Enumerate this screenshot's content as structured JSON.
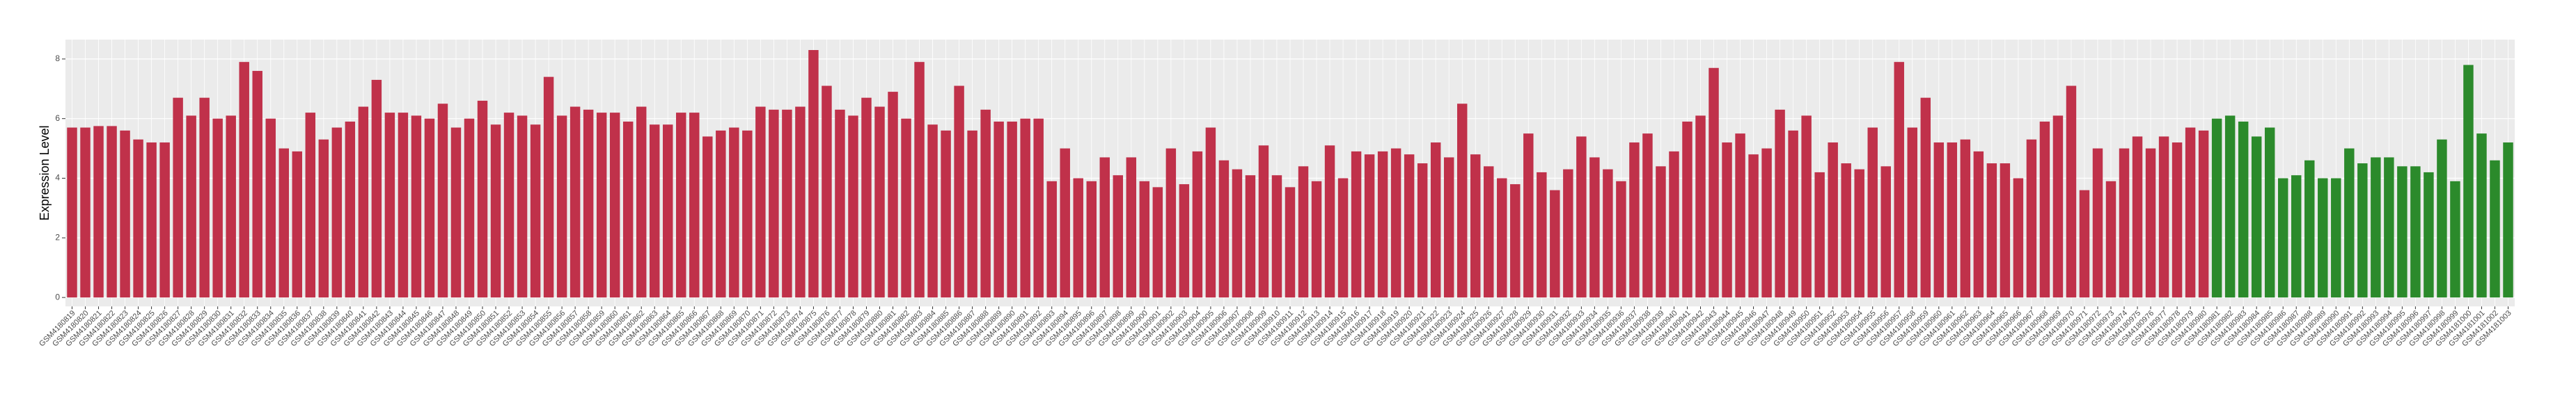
{
  "chart_data": {
    "type": "bar",
    "y_label": "Expression Level",
    "categories": [
      "GSM4180819",
      "GSM4180820",
      "GSM4180821",
      "GSM4180822",
      "GSM4180823",
      "GSM4180824",
      "GSM4180825",
      "GSM4180826",
      "GSM4180827",
      "GSM4180828",
      "GSM4180829",
      "GSM4180830",
      "GSM4180831",
      "GSM4180832",
      "GSM4180833",
      "GSM4180834",
      "GSM4180835",
      "GSM4180836",
      "GSM4180837",
      "GSM4180838",
      "GSM4180839",
      "GSM4180840",
      "GSM4180841",
      "GSM4180842",
      "GSM4180843",
      "GSM4180844",
      "GSM4180845",
      "GSM4180846",
      "GSM4180847",
      "GSM4180848",
      "GSM4180849",
      "GSM4180850",
      "GSM4180851",
      "GSM4180852",
      "GSM4180853",
      "GSM4180854",
      "GSM4180855",
      "GSM4180856",
      "GSM4180857",
      "GSM4180858",
      "GSM4180859",
      "GSM4180860",
      "GSM4180861",
      "GSM4180862",
      "GSM4180863",
      "GSM4180864",
      "GSM4180865",
      "GSM4180866",
      "GSM4180867",
      "GSM4180868",
      "GSM4180869",
      "GSM4180870",
      "GSM4180871",
      "GSM4180872",
      "GSM4180873",
      "GSM4180874",
      "GSM4180875",
      "GSM4180876",
      "GSM4180877",
      "GSM4180878",
      "GSM4180879",
      "GSM4180880",
      "GSM4180881",
      "GSM4180882",
      "GSM4180883",
      "GSM4180884",
      "GSM4180885",
      "GSM4180886",
      "GSM4180887",
      "GSM4180888",
      "GSM4180889",
      "GSM4180890",
      "GSM4180891",
      "GSM4180892",
      "GSM4180893",
      "GSM4180894",
      "GSM4180895",
      "GSM4180896",
      "GSM4180897",
      "GSM4180898",
      "GSM4180899",
      "GSM4180900",
      "GSM4180901",
      "GSM4180902",
      "GSM4180903",
      "GSM4180904",
      "GSM4180905",
      "GSM4180906",
      "GSM4180907",
      "GSM4180908",
      "GSM4180909",
      "GSM4180910",
      "GSM4180911",
      "GSM4180912",
      "GSM4180913",
      "GSM4180914",
      "GSM4180915",
      "GSM4180916",
      "GSM4180917",
      "GSM4180918",
      "GSM4180919",
      "GSM4180920",
      "GSM4180921",
      "GSM4180922",
      "GSM4180923",
      "GSM4180924",
      "GSM4180925",
      "GSM4180926",
      "GSM4180927",
      "GSM4180928",
      "GSM4180929",
      "GSM4180930",
      "GSM4180931",
      "GSM4180932",
      "GSM4180933",
      "GSM4180934",
      "GSM4180935",
      "GSM4180936",
      "GSM4180937",
      "GSM4180938",
      "GSM4180939",
      "GSM4180940",
      "GSM4180941",
      "GSM4180942",
      "GSM4180943",
      "GSM4180944",
      "GSM4180945",
      "GSM4180946",
      "GSM4180947",
      "GSM4180948",
      "GSM4180949",
      "GSM4180950",
      "GSM4180951",
      "GSM4180952",
      "GSM4180953",
      "GSM4180954",
      "GSM4180955",
      "GSM4180956",
      "GSM4180957",
      "GSM4180958",
      "GSM4180959",
      "GSM4180960",
      "GSM4180961",
      "GSM4180962",
      "GSM4180963",
      "GSM4180964",
      "GSM4180965",
      "GSM4180966",
      "GSM4180967",
      "GSM4180968",
      "GSM4180969",
      "GSM4180970",
      "GSM4180971",
      "GSM4180972",
      "GSM4180973",
      "GSM4180974",
      "GSM4180975",
      "GSM4180976",
      "GSM4180977",
      "GSM4180978",
      "GSM4180979",
      "GSM4180980",
      "GSM4180981",
      "GSM4180982",
      "GSM4180983",
      "GSM4180984",
      "GSM4180985",
      "GSM4180986",
      "GSM4180987",
      "GSM4180988",
      "GSM4180989",
      "GSM4180990",
      "GSM4180991",
      "GSM4180992",
      "GSM4180993",
      "GSM4180994",
      "GSM4180995",
      "GSM4180996",
      "GSM4180997",
      "GSM4180998",
      "GSM4180999",
      "GSM4181000",
      "GSM4181001",
      "GSM4181002",
      "GSM4181003"
    ],
    "values": [
      5.7,
      5.7,
      5.75,
      5.75,
      5.6,
      5.3,
      5.2,
      5.2,
      6.7,
      6.1,
      6.7,
      6.0,
      6.1,
      7.9,
      7.6,
      6.0,
      5.0,
      4.9,
      6.2,
      5.3,
      5.7,
      5.9,
      6.4,
      7.3,
      6.2,
      6.2,
      6.1,
      6.0,
      6.5,
      5.7,
      6.0,
      6.6,
      5.8,
      6.2,
      6.1,
      5.8,
      7.4,
      6.1,
      6.4,
      6.3,
      6.2,
      6.2,
      5.9,
      6.4,
      5.8,
      5.8,
      6.2,
      6.2,
      5.4,
      5.6,
      5.7,
      5.6,
      6.4,
      6.3,
      6.3,
      6.4,
      8.3,
      7.1,
      6.3,
      6.1,
      6.7,
      6.4,
      6.9,
      6.0,
      7.9,
      5.8,
      5.6,
      7.1,
      5.6,
      6.3,
      5.9,
      5.9,
      6.0,
      6.0,
      3.9,
      5.0,
      4.0,
      3.9,
      4.7,
      4.1,
      4.7,
      3.9,
      3.7,
      5.0,
      3.8,
      4.9,
      5.7,
      4.6,
      4.3,
      4.1,
      5.1,
      4.1,
      3.7,
      4.4,
      3.9,
      5.1,
      4.0,
      4.9,
      4.8,
      4.9,
      5.0,
      4.8,
      4.5,
      5.2,
      4.7,
      6.5,
      4.8,
      4.4,
      4.0,
      3.8,
      5.5,
      4.2,
      3.6,
      4.3,
      5.4,
      4.7,
      4.3,
      3.9,
      5.2,
      5.5,
      4.4,
      4.9,
      5.9,
      6.1,
      7.7,
      5.2,
      5.5,
      4.8,
      5.0,
      6.3,
      5.6,
      6.1,
      4.2,
      5.2,
      4.5,
      4.3,
      5.7,
      4.4,
      7.9,
      5.7,
      6.7,
      5.2,
      5.2,
      5.3,
      4.9,
      4.5,
      4.5,
      4.0,
      5.3,
      5.9,
      6.1,
      7.1,
      3.6,
      5.0,
      3.9,
      5.0,
      5.4,
      5.0,
      5.4,
      5.2,
      5.7,
      5.6,
      6.0,
      6.1,
      5.9,
      5.4,
      5.7,
      4.0,
      4.1,
      4.6,
      4.0,
      4.0,
      5.0,
      4.5,
      4.7,
      4.7,
      4.4,
      4.4,
      4.2,
      5.3,
      3.9,
      7.8,
      5.5,
      4.6,
      5.2
    ],
    "colors": [
      "#c0314a",
      "#c0314a",
      "#c0314a",
      "#c0314a",
      "#c0314a",
      "#c0314a",
      "#c0314a",
      "#c0314a",
      "#c0314a",
      "#c0314a",
      "#c0314a",
      "#c0314a",
      "#c0314a",
      "#c0314a",
      "#c0314a",
      "#c0314a",
      "#c0314a",
      "#c0314a",
      "#c0314a",
      "#c0314a",
      "#c0314a",
      "#c0314a",
      "#c0314a",
      "#c0314a",
      "#c0314a",
      "#c0314a",
      "#c0314a",
      "#c0314a",
      "#c0314a",
      "#c0314a",
      "#c0314a",
      "#c0314a",
      "#c0314a",
      "#c0314a",
      "#c0314a",
      "#c0314a",
      "#c0314a",
      "#c0314a",
      "#c0314a",
      "#c0314a",
      "#c0314a",
      "#c0314a",
      "#c0314a",
      "#c0314a",
      "#c0314a",
      "#c0314a",
      "#c0314a",
      "#c0314a",
      "#c0314a",
      "#c0314a",
      "#c0314a",
      "#c0314a",
      "#c0314a",
      "#c0314a",
      "#c0314a",
      "#c0314a",
      "#c0314a",
      "#c0314a",
      "#c0314a",
      "#c0314a",
      "#c0314a",
      "#c0314a",
      "#c0314a",
      "#c0314a",
      "#c0314a",
      "#c0314a",
      "#c0314a",
      "#c0314a",
      "#c0314a",
      "#c0314a",
      "#c0314a",
      "#c0314a",
      "#c0314a",
      "#c0314a",
      "#c0314a",
      "#c0314a",
      "#c0314a",
      "#c0314a",
      "#c0314a",
      "#c0314a",
      "#c0314a",
      "#c0314a",
      "#c0314a",
      "#c0314a",
      "#c0314a",
      "#c0314a",
      "#c0314a",
      "#c0314a",
      "#c0314a",
      "#c0314a",
      "#c0314a",
      "#c0314a",
      "#c0314a",
      "#c0314a",
      "#c0314a",
      "#c0314a",
      "#c0314a",
      "#c0314a",
      "#c0314a",
      "#c0314a",
      "#c0314a",
      "#c0314a",
      "#c0314a",
      "#c0314a",
      "#c0314a",
      "#c0314a",
      "#c0314a",
      "#c0314a",
      "#c0314a",
      "#c0314a",
      "#c0314a",
      "#c0314a",
      "#c0314a",
      "#c0314a",
      "#c0314a",
      "#c0314a",
      "#c0314a",
      "#c0314a",
      "#c0314a",
      "#c0314a",
      "#c0314a",
      "#c0314a",
      "#c0314a",
      "#c0314a",
      "#c0314a",
      "#c0314a",
      "#c0314a",
      "#c0314a",
      "#c0314a",
      "#c0314a",
      "#c0314a",
      "#c0314a",
      "#c0314a",
      "#c0314a",
      "#c0314a",
      "#c0314a",
      "#c0314a",
      "#c0314a",
      "#c0314a",
      "#c0314a",
      "#c0314a",
      "#c0314a",
      "#c0314a",
      "#c0314a",
      "#c0314a",
      "#c0314a",
      "#c0314a",
      "#c0314a",
      "#c0314a",
      "#c0314a",
      "#c0314a",
      "#c0314a",
      "#c0314a",
      "#c0314a",
      "#c0314a",
      "#c0314a",
      "#c0314a",
      "#c0314a",
      "#c0314a",
      "#c0314a",
      "#c0314a",
      "#c0314a",
      "#2b8a2b",
      "#2b8a2b",
      "#2b8a2b",
      "#2b8a2b",
      "#2b8a2b",
      "#2b8a2b",
      "#2b8a2b",
      "#2b8a2b",
      "#2b8a2b",
      "#2b8a2b",
      "#2b8a2b",
      "#2b8a2b",
      "#2b8a2b",
      "#2b8a2b",
      "#2b8a2b",
      "#2b8a2b",
      "#2b8a2b",
      "#2b8a2b",
      "#2b8a2b",
      "#2b8a2b",
      "#2b8a2b",
      "#2b8a2b",
      "#2b8a2b"
    ],
    "ylim": [
      -0.3,
      8.65
    ],
    "yticks": [
      0,
      2,
      4,
      6,
      8
    ],
    "grid": true
  }
}
